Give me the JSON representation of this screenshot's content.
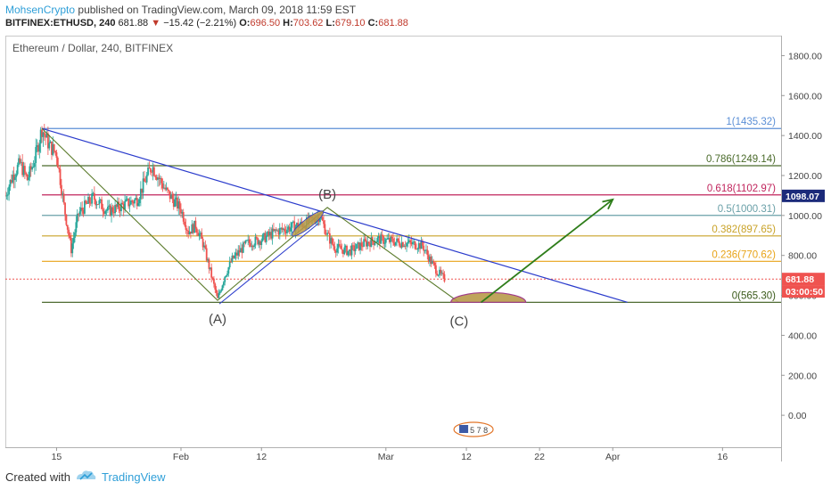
{
  "header": {
    "author": "MohsenCrypto",
    "published": "published on TradingView.com, March 09, 2018 11:59 EST",
    "symbol": "BITFINEX:ETHUSD, 240",
    "last": "681.88",
    "change_arrow": "▼",
    "change": "−15.42 (−2.21%)",
    "o_label": "O:",
    "o_value": "696.50",
    "h_label": "H:",
    "h_value": "703.62",
    "l_label": "L:",
    "l_value": "679.10",
    "c_label": "C:",
    "c_value": "681.88"
  },
  "footer": {
    "created_with": "Created with",
    "brand": "TradingView"
  },
  "colors": {
    "candle_up": "#26a69a",
    "candle_down": "#ef5350",
    "trendline": "#2a3bcc",
    "wave": "#5a7a2a",
    "arrow": "#2e7d1a",
    "current_price": "#ef5350",
    "level_1098": "#1b2a7a"
  },
  "chart_data": {
    "type": "candlestick",
    "title": "Ethereum / Dollar, 240, BITFINEX",
    "y_axis": {
      "ticks": [
        0,
        200,
        400,
        600,
        800,
        1000,
        1200,
        1400,
        1600,
        1800
      ],
      "tick_labels": [
        "0.00",
        "200.00",
        "400.00",
        "600.00",
        "800.00",
        "1000.00",
        "1200.00",
        "1400.00",
        "1600.00",
        "1800.00"
      ],
      "ylim": [
        -160,
        1900
      ]
    },
    "x_axis": {
      "tick_labels": [
        "15",
        "Feb",
        "12",
        "Mar",
        "12",
        "22",
        "Apr",
        "16"
      ],
      "tick_dates": [
        "2018-01-15",
        "2018-02-01",
        "2018-02-12",
        "2018-03-01",
        "2018-03-12",
        "2018-03-22",
        "2018-04-01",
        "2018-04-16"
      ],
      "xlim": [
        "2018-01-08",
        "2018-04-24"
      ]
    },
    "price_path": [
      {
        "date": "2018-01-08",
        "price": 1100
      },
      {
        "date": "2018-01-09",
        "price": 1200
      },
      {
        "date": "2018-01-10",
        "price": 1260
      },
      {
        "date": "2018-01-11",
        "price": 1180
      },
      {
        "date": "2018-01-12",
        "price": 1280
      },
      {
        "date": "2018-01-13",
        "price": 1435
      },
      {
        "date": "2018-01-14",
        "price": 1350
      },
      {
        "date": "2018-01-15",
        "price": 1310
      },
      {
        "date": "2018-01-16",
        "price": 1050
      },
      {
        "date": "2018-01-17",
        "price": 830
      },
      {
        "date": "2018-01-18",
        "price": 1010
      },
      {
        "date": "2018-01-20",
        "price": 1090
      },
      {
        "date": "2018-01-22",
        "price": 1020
      },
      {
        "date": "2018-01-24",
        "price": 1050
      },
      {
        "date": "2018-01-26",
        "price": 1080
      },
      {
        "date": "2018-01-28",
        "price": 1250
      },
      {
        "date": "2018-01-30",
        "price": 1120
      },
      {
        "date": "2018-02-01",
        "price": 1030
      },
      {
        "date": "2018-02-02",
        "price": 920
      },
      {
        "date": "2018-02-03",
        "price": 950
      },
      {
        "date": "2018-02-04",
        "price": 860
      },
      {
        "date": "2018-02-05",
        "price": 720
      },
      {
        "date": "2018-02-06",
        "price": 580
      },
      {
        "date": "2018-02-07",
        "price": 700
      },
      {
        "date": "2018-02-08",
        "price": 780
      },
      {
        "date": "2018-02-10",
        "price": 860
      },
      {
        "date": "2018-02-12",
        "price": 880
      },
      {
        "date": "2018-02-14",
        "price": 920
      },
      {
        "date": "2018-02-16",
        "price": 940
      },
      {
        "date": "2018-02-18",
        "price": 960
      },
      {
        "date": "2018-02-19",
        "price": 980
      },
      {
        "date": "2018-02-20",
        "price": 1000
      },
      {
        "date": "2018-02-21",
        "price": 900
      },
      {
        "date": "2018-02-22",
        "price": 840
      },
      {
        "date": "2018-02-24",
        "price": 820
      },
      {
        "date": "2018-02-26",
        "price": 860
      },
      {
        "date": "2018-02-28",
        "price": 880
      },
      {
        "date": "2018-03-02",
        "price": 870
      },
      {
        "date": "2018-03-04",
        "price": 860
      },
      {
        "date": "2018-03-06",
        "price": 850
      },
      {
        "date": "2018-03-07",
        "price": 780
      },
      {
        "date": "2018-03-08",
        "price": 720
      },
      {
        "date": "2018-03-09",
        "price": 681.88
      }
    ],
    "fib_levels": [
      {
        "ratio": "1",
        "price": 1435.32,
        "label": "1(1435.32)",
        "color": "#5b8fd6"
      },
      {
        "ratio": "0.786",
        "price": 1249.14,
        "label": "0.786(1249.14)",
        "color": "#4a6a2a"
      },
      {
        "ratio": "0.618",
        "price": 1102.97,
        "label": "0.618(1102.97)",
        "color": "#c0245c"
      },
      {
        "ratio": "0.5",
        "price": 1000.31,
        "label": "0.5(1000.31)",
        "color": "#6aa0a8"
      },
      {
        "ratio": "0.382",
        "price": 897.65,
        "label": "0.382(897.65)",
        "color": "#c9a227"
      },
      {
        "ratio": "0.236",
        "price": 770.62,
        "label": "0.236(770.62)",
        "color": "#e8a317"
      },
      {
        "ratio": "0",
        "price": 565.3,
        "label": "0(565.30)",
        "color": "#3a5a1a"
      }
    ],
    "fib_start_date": "2018-01-13",
    "trendline": [
      {
        "date": "2018-01-13",
        "price": 1435.32
      },
      {
        "date": "2018-04-03",
        "price": 565.3
      }
    ],
    "wave_points": [
      {
        "label": "(A)",
        "date": "2018-02-06",
        "price": 575
      },
      {
        "label": "(B)",
        "date": "2018-02-21",
        "price": 1040
      },
      {
        "label": "(C)",
        "date": "2018-03-11",
        "price": 565
      }
    ],
    "projection_arrow": [
      {
        "date": "2018-03-14",
        "price": 565
      },
      {
        "date": "2018-04-01",
        "price": 1080
      }
    ],
    "price_labels": [
      {
        "text": "1098.07",
        "price": 1098.07,
        "style": "dark"
      },
      {
        "text": "681.88",
        "price": 681.88,
        "style": "red"
      },
      {
        "text": "03:00:50",
        "price": 620,
        "style": "red"
      }
    ],
    "current_price": 681.88,
    "events_badge": "5 7 8",
    "events_badge_date": "2018-03-12"
  }
}
